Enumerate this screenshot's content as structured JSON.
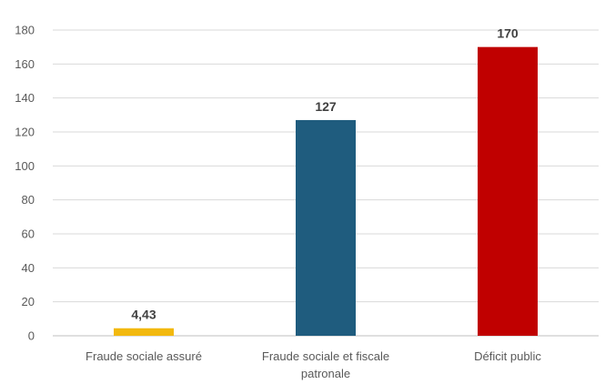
{
  "chart_data": {
    "type": "bar",
    "title": "",
    "xlabel": "",
    "ylabel": "",
    "categories": [
      "Fraude sociale assuré",
      "Fraude sociale et fiscale patronale",
      "Déficit public"
    ],
    "category_lines": [
      [
        "Fraude sociale assuré"
      ],
      [
        "Fraude sociale et fiscale",
        "patronale"
      ],
      [
        "Déficit public"
      ]
    ],
    "values": [
      4.43,
      127,
      170
    ],
    "data_labels": [
      "4,43",
      "127",
      "170"
    ],
    "bar_colors": [
      "#f2b90f",
      "#1f5c7e",
      "#c00000"
    ],
    "ylim": [
      0,
      180
    ],
    "yticks": [
      0,
      20,
      40,
      60,
      80,
      100,
      120,
      140,
      160,
      180
    ],
    "grid": true,
    "legend": "none"
  }
}
